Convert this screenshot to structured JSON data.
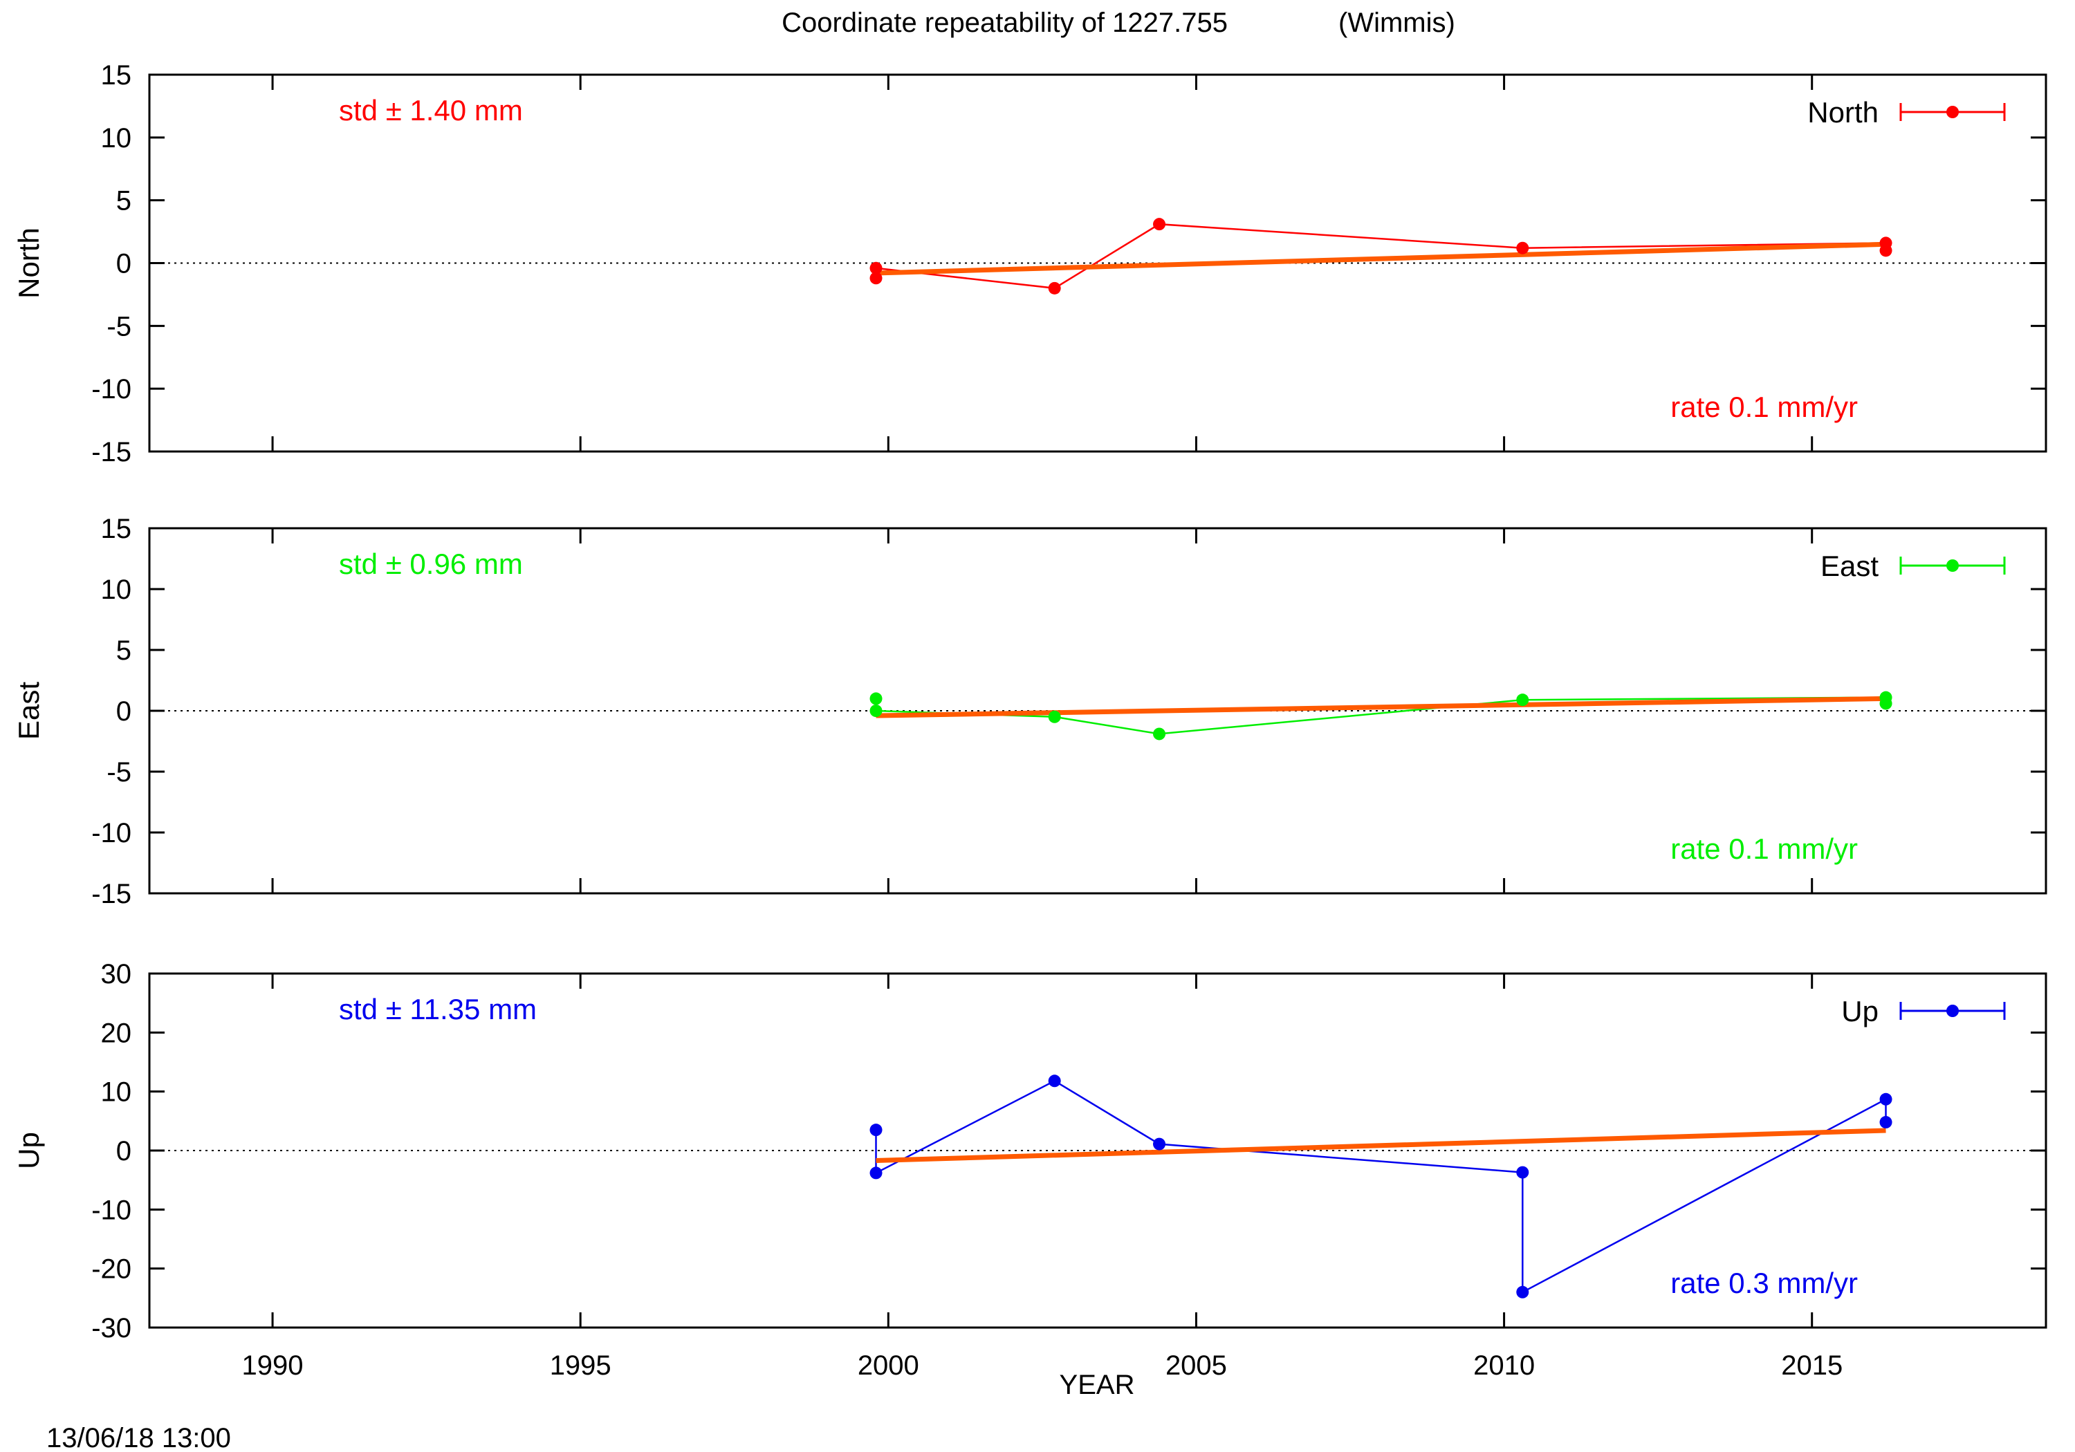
{
  "title": "Coordinate repeatability of 1227.755",
  "subtitle": "(Wimmis)",
  "timestamp": "13/06/18 13:00",
  "xlabel": "YEAR",
  "trend_color": "#ff5a00",
  "zero_line_color": "#000000",
  "chart_data": [
    {
      "type": "line",
      "ylabel": "North",
      "color": "#ff0000",
      "std_label": "std ± 1.40 mm",
      "rate_label": "rate  0.1 mm/yr",
      "legend": "North",
      "xlim": [
        1988,
        2018.8
      ],
      "ylim": [
        -15,
        15
      ],
      "yticks": [
        15,
        10,
        5,
        0,
        -5,
        -10,
        -15
      ],
      "xticks": [
        1990,
        1995,
        2000,
        2005,
        2010,
        2015
      ],
      "series": [
        {
          "name": "North",
          "points": [
            [
              1999.8,
              -1.2
            ],
            [
              1999.8,
              -0.4
            ],
            [
              2002.7,
              -2.0
            ],
            [
              2004.4,
              3.1
            ],
            [
              2010.3,
              1.2
            ],
            [
              2016.2,
              1.6
            ],
            [
              2016.2,
              1.0
            ]
          ]
        }
      ],
      "trend": [
        [
          1999.8,
          -0.8
        ],
        [
          2016.2,
          1.5
        ]
      ]
    },
    {
      "type": "line",
      "ylabel": "East",
      "color": "#00ee00",
      "std_label": "std ± 0.96 mm",
      "rate_label": "rate  0.1 mm/yr",
      "legend": "East",
      "xlim": [
        1988,
        2018.8
      ],
      "ylim": [
        -15,
        15
      ],
      "yticks": [
        15,
        10,
        5,
        0,
        -5,
        -10,
        -15
      ],
      "xticks": [
        1990,
        1995,
        2000,
        2005,
        2010,
        2015
      ],
      "series": [
        {
          "name": "East",
          "points": [
            [
              1999.8,
              1.0
            ],
            [
              1999.8,
              0.0
            ],
            [
              2002.7,
              -0.5
            ],
            [
              2004.4,
              -1.9
            ],
            [
              2010.3,
              0.9
            ],
            [
              2016.2,
              1.1
            ],
            [
              2016.2,
              0.6
            ]
          ]
        }
      ],
      "trend": [
        [
          1999.8,
          -0.4
        ],
        [
          2016.2,
          1.0
        ]
      ]
    },
    {
      "type": "line",
      "ylabel": "Up",
      "color": "#0000ee",
      "std_label": "std ± 11.35 mm",
      "rate_label": "rate  0.3 mm/yr",
      "legend": "Up",
      "xlim": [
        1988,
        2018.8
      ],
      "ylim": [
        -30,
        30
      ],
      "yticks": [
        30,
        20,
        10,
        0,
        -10,
        -20,
        -30
      ],
      "xticks": [
        1990,
        1995,
        2000,
        2005,
        2010,
        2015
      ],
      "series": [
        {
          "name": "Up",
          "points": [
            [
              1999.8,
              3.5
            ],
            [
              1999.8,
              -3.8
            ],
            [
              2002.7,
              11.8
            ],
            [
              2004.4,
              1.1
            ],
            [
              2010.3,
              -3.7
            ],
            [
              2010.3,
              -24.0
            ],
            [
              2016.2,
              8.7
            ],
            [
              2016.2,
              4.8
            ]
          ]
        }
      ],
      "trend": [
        [
          1999.8,
          -1.7
        ],
        [
          2016.2,
          3.4
        ]
      ]
    }
  ]
}
